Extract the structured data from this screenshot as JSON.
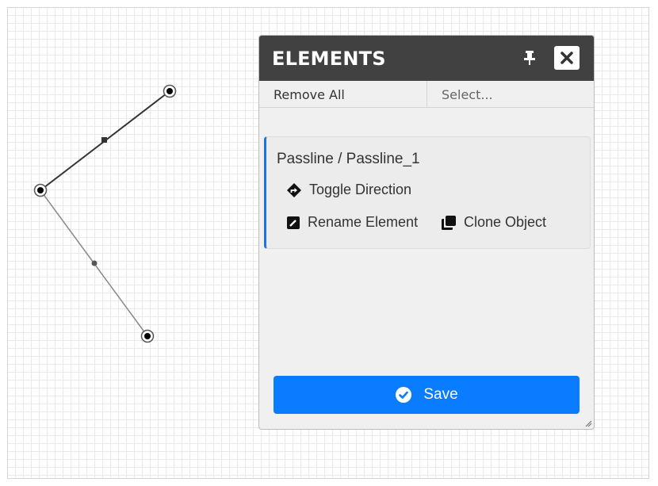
{
  "panel": {
    "title": "ELEMENTS",
    "pin_icon": "pin-icon",
    "close_icon": "close-icon"
  },
  "toolbar": {
    "remove_all_label": "Remove All",
    "select_placeholder": "Select..."
  },
  "element": {
    "title": "Passline / Passline_1",
    "actions": {
      "toggle_direction": "Toggle Direction",
      "rename_element": "Rename Element",
      "clone_object": "Clone Object"
    }
  },
  "save_label": "Save",
  "colors": {
    "header_bg": "#414141",
    "accent": "#0a7cff",
    "card_border_accent": "#1a73e8"
  }
}
